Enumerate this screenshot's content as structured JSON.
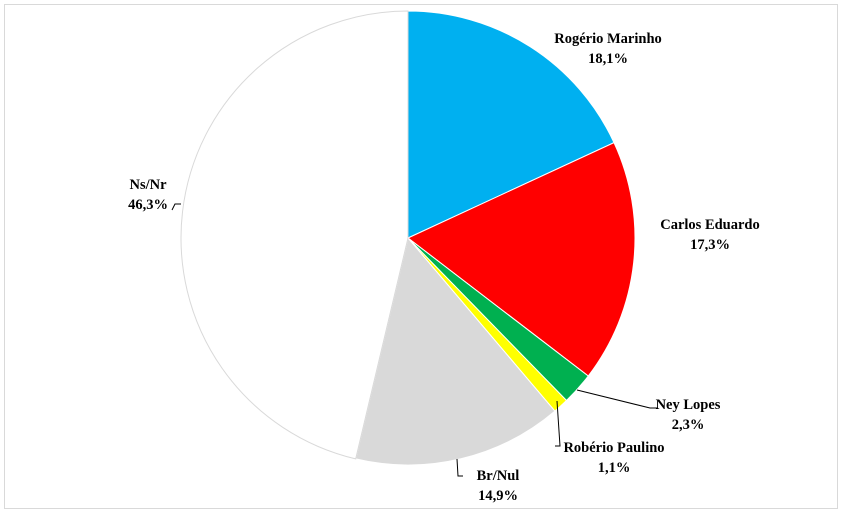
{
  "chart_data": {
    "type": "pie",
    "title": "",
    "legend": "none",
    "slices": [
      {
        "label": "Rogério Marinho",
        "value": 18.1,
        "value_text": "18,1%",
        "color": "#00b0f0"
      },
      {
        "label": "Carlos Eduardo",
        "value": 17.3,
        "value_text": "17,3%",
        "color": "#ff0000"
      },
      {
        "label": "Ney Lopes",
        "value": 2.3,
        "value_text": "2,3%",
        "color": "#00b050"
      },
      {
        "label": "Robério Paulino",
        "value": 1.1,
        "value_text": "1,1%",
        "color": "#ffff00"
      },
      {
        "label": "Br/Nul",
        "value": 14.9,
        "value_text": "14,9%",
        "color": "#d9d9d9"
      },
      {
        "label": "Ns/Nr",
        "value": 46.3,
        "value_text": "46,3%",
        "color": "#ffffff"
      }
    ]
  }
}
